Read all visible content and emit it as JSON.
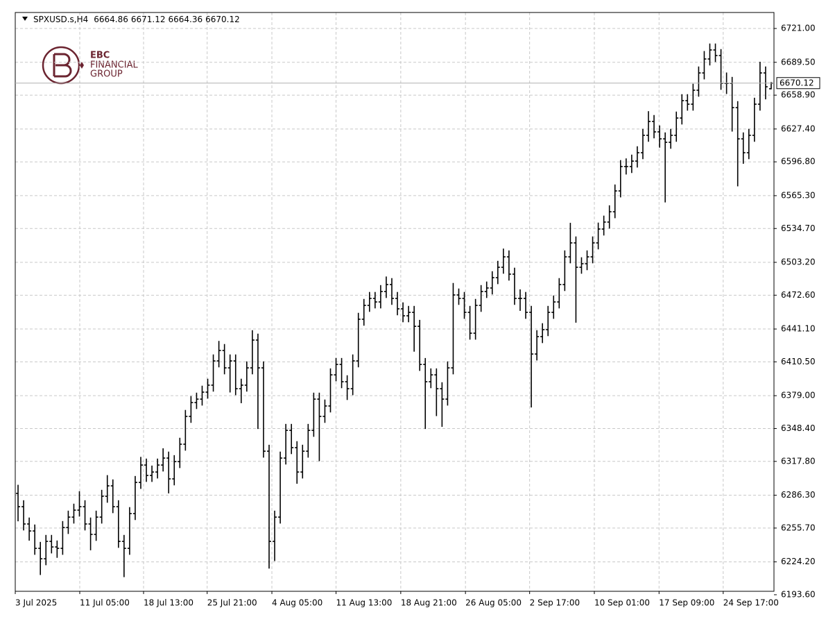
{
  "chart_data": {
    "type": "ohlc",
    "title": "SPXUSD.s,H4",
    "color": "#000000",
    "grid": true,
    "xlim": [
      0,
      136
    ],
    "ylim": [
      6196.8,
      6735.9
    ],
    "yticks": [
      {
        "value": 6721.0,
        "label": "6721.00"
      },
      {
        "value": 6689.5,
        "label": "6689.50"
      },
      {
        "value": 6658.9,
        "label": "6658.90"
      },
      {
        "value": 6627.4,
        "label": "6627.40"
      },
      {
        "value": 6596.8,
        "label": "6596.80"
      },
      {
        "value": 6565.3,
        "label": "6565.30"
      },
      {
        "value": 6534.7,
        "label": "6534.70"
      },
      {
        "value": 6503.2,
        "label": "6503.20"
      },
      {
        "value": 6472.6,
        "label": "6472.60"
      },
      {
        "value": 6441.1,
        "label": "6441.10"
      },
      {
        "value": 6410.5,
        "label": "6410.50"
      },
      {
        "value": 6379.0,
        "label": "6379.00"
      },
      {
        "value": 6348.4,
        "label": "6348.40"
      },
      {
        "value": 6317.8,
        "label": "6317.80"
      },
      {
        "value": 6286.3,
        "label": "6286.30"
      },
      {
        "value": 6255.7,
        "label": "6255.70"
      },
      {
        "value": 6224.2,
        "label": "6224.20"
      },
      {
        "value": 6193.6,
        "label": "6193.60"
      }
    ],
    "xticks": [
      {
        "value": 0,
        "label": "3 Jul 2025"
      },
      {
        "value": 11.56,
        "label": "11 Jul 05:00"
      },
      {
        "value": 23.0,
        "label": "18 Jul 13:00"
      },
      {
        "value": 34.4,
        "label": "25 Jul 21:00"
      },
      {
        "value": 46.0,
        "label": "4 Aug 05:00"
      },
      {
        "value": 57.5,
        "label": "11 Aug 13:00"
      },
      {
        "value": 69.1,
        "label": "18 Aug 21:00"
      },
      {
        "value": 80.7,
        "label": "26 Aug 05:00"
      },
      {
        "value": 92.2,
        "label": "2 Sep 17:00"
      },
      {
        "value": 103.8,
        "label": "10 Sep 01:00"
      },
      {
        "value": 115.4,
        "label": "17 Sep 09:00"
      },
      {
        "value": 126.9,
        "label": "24 Sep 17:00"
      }
    ],
    "series": {
      "open": [
        6288.0,
        6275.6,
        6259.5,
        6253.0,
        6236.8,
        6227.1,
        6243.3,
        6238.1,
        6236.8,
        6256.2,
        6265.9,
        6272.4,
        6275.6,
        6259.5,
        6249.8,
        6265.9,
        6285.3,
        6295.0,
        6275.6,
        6243.3,
        6236.8,
        6269.2,
        6298.2,
        6314.4,
        6304.7,
        6307.9,
        6314.4,
        6320.9,
        6301.5,
        6317.6,
        6333.8,
        6359.7,
        6372.6,
        6375.8,
        6382.3,
        6388.8,
        6411.4,
        6421.1,
        6404.9,
        6411.4,
        6385.5,
        6388.8,
        6404.9,
        6430.8,
        6404.9,
        6327.3,
        6243.3,
        6265.9,
        6320.9,
        6346.7,
        6330.6,
        6307.9,
        6327.3,
        6346.7,
        6375.8,
        6359.7,
        6369.4,
        6398.4,
        6408.1,
        6392.0,
        6385.5,
        6411.4,
        6450.2,
        6463.1,
        6469.6,
        6466.3,
        6476.0,
        6482.5,
        6469.6,
        6459.9,
        6453.4,
        6456.6,
        6443.6,
        6408.1,
        6392.0,
        6398.4,
        6385.5,
        6375.8,
        6404.9,
        6472.8,
        6469.6,
        6456.6,
        6437.2,
        6463.1,
        6476.0,
        6479.3,
        6488.9,
        6498.6,
        6508.3,
        6492.2,
        6469.6,
        6469.6,
        6456.6,
        6417.8,
        6434.0,
        6440.5,
        6456.6,
        6466.3,
        6482.5,
        6508.3,
        6521.3,
        6498.6,
        6501.9,
        6508.3,
        6521.3,
        6534.2,
        6540.7,
        6550.3,
        6569.7,
        6592.4,
        6592.4,
        6597.5,
        6605.3,
        6621.5,
        6634.4,
        6624.7,
        6618.2,
        6615.0,
        6621.5,
        6637.6,
        6653.8,
        6650.5,
        6663.5,
        6679.6,
        6692.6,
        6701.0,
        6695.8,
        6669.9,
        6669.9,
        6647.3,
        6618.2,
        6605.3,
        6621.5,
        6650.5,
        6679.6,
        6664.86
      ],
      "high": [
        6296.0,
        6281.6,
        6265.5,
        6259.0,
        6242.8,
        6249.3,
        6249.3,
        6244.1,
        6262.2,
        6271.9,
        6278.4,
        6290.0,
        6281.6,
        6265.5,
        6271.9,
        6291.3,
        6305.0,
        6301.0,
        6281.6,
        6249.3,
        6275.2,
        6304.2,
        6322.0,
        6320.4,
        6313.9,
        6320.4,
        6330.0,
        6326.9,
        6323.6,
        6339.8,
        6365.7,
        6378.6,
        6381.8,
        6388.3,
        6394.8,
        6417.4,
        6430.0,
        6427.1,
        6417.4,
        6417.4,
        6394.8,
        6410.9,
        6440.0,
        6436.8,
        6410.9,
        6333.3,
        6271.9,
        6326.9,
        6352.7,
        6352.7,
        6336.6,
        6333.3,
        6352.7,
        6381.8,
        6381.8,
        6375.4,
        6404.4,
        6414.1,
        6414.1,
        6398.0,
        6417.4,
        6456.2,
        6469.1,
        6475.6,
        6475.6,
        6482.0,
        6490.0,
        6488.5,
        6475.6,
        6465.9,
        6462.6,
        6462.6,
        6449.6,
        6414.1,
        6404.4,
        6404.4,
        6391.5,
        6410.9,
        6484.0,
        6478.8,
        6475.6,
        6462.6,
        6469.1,
        6482.0,
        6485.3,
        6494.9,
        6504.6,
        6516.0,
        6514.3,
        6498.2,
        6478.0,
        6475.6,
        6462.6,
        6440.0,
        6446.5,
        6462.6,
        6472.3,
        6488.5,
        6514.3,
        6540.0,
        6527.3,
        6507.9,
        6514.3,
        6527.3,
        6540.2,
        6546.7,
        6556.3,
        6575.7,
        6598.4,
        6600.0,
        6603.5,
        6611.3,
        6627.5,
        6644.0,
        6640.4,
        6630.7,
        6624.2,
        6627.5,
        6643.6,
        6659.8,
        6659.8,
        6669.5,
        6685.6,
        6700.0,
        6707.0,
        6707.0,
        6701.8,
        6680.0,
        6675.9,
        6653.3,
        6624.2,
        6627.5,
        6656.5,
        6690.0,
        6685.6,
        6671.12
      ],
      "low": [
        6262.0,
        6253.5,
        6244.0,
        6230.8,
        6212.0,
        6221.1,
        6232.1,
        6228.0,
        6230.8,
        6250.2,
        6259.9,
        6266.4,
        6253.5,
        6235.0,
        6243.8,
        6259.9,
        6279.3,
        6269.6,
        6237.3,
        6210.0,
        6230.8,
        6263.2,
        6292.2,
        6298.7,
        6298.7,
        6301.9,
        6308.4,
        6288.0,
        6295.5,
        6311.6,
        6327.8,
        6353.7,
        6366.6,
        6369.8,
        6376.3,
        6382.8,
        6405.4,
        6398.9,
        6382.0,
        6379.5,
        6372.0,
        6382.8,
        6398.9,
        6348.0,
        6321.3,
        6218.0,
        6225.0,
        6259.9,
        6314.9,
        6324.6,
        6297.0,
        6301.9,
        6321.3,
        6340.7,
        6318.0,
        6353.7,
        6363.4,
        6392.4,
        6386.0,
        6375.0,
        6379.5,
        6405.4,
        6444.2,
        6457.1,
        6460.3,
        6460.3,
        6470.0,
        6463.6,
        6453.9,
        6447.4,
        6447.4,
        6420.0,
        6402.1,
        6348.0,
        6386.0,
        6360.0,
        6350.0,
        6369.8,
        6398.9,
        6463.6,
        6450.6,
        6431.2,
        6431.2,
        6457.1,
        6470.0,
        6473.3,
        6482.9,
        6492.6,
        6486.2,
        6463.6,
        6458.0,
        6450.6,
        6368.0,
        6411.8,
        6428.0,
        6434.5,
        6450.6,
        6460.3,
        6476.5,
        6502.3,
        6447.0,
        6492.6,
        6495.9,
        6502.3,
        6515.3,
        6528.2,
        6534.7,
        6544.3,
        6563.7,
        6585.0,
        6586.4,
        6591.5,
        6599.3,
        6615.5,
        6618.7,
        6610.0,
        6559.0,
        6609.0,
        6615.5,
        6631.6,
        6644.5,
        6644.5,
        6657.5,
        6673.6,
        6686.6,
        6689.8,
        6663.9,
        6660.0,
        6625.0,
        6574.0,
        6595.0,
        6599.3,
        6615.5,
        6644.5,
        6655.0,
        6664.36
      ],
      "close": [
        6275.6,
        6259.5,
        6253.0,
        6236.8,
        6227.1,
        6243.3,
        6238.1,
        6236.8,
        6256.2,
        6265.9,
        6272.4,
        6275.6,
        6259.5,
        6249.8,
        6265.9,
        6285.3,
        6295.0,
        6275.6,
        6243.3,
        6236.8,
        6269.2,
        6298.2,
        6314.4,
        6304.7,
        6307.9,
        6314.4,
        6320.9,
        6301.5,
        6317.6,
        6333.8,
        6359.7,
        6372.6,
        6375.8,
        6382.3,
        6388.8,
        6411.4,
        6421.1,
        6404.9,
        6411.4,
        6385.5,
        6388.8,
        6404.9,
        6430.8,
        6404.9,
        6327.3,
        6243.3,
        6265.9,
        6320.9,
        6346.7,
        6330.6,
        6307.9,
        6327.3,
        6346.7,
        6375.8,
        6359.7,
        6369.4,
        6398.4,
        6408.1,
        6392.0,
        6385.5,
        6411.4,
        6450.2,
        6463.1,
        6469.6,
        6466.3,
        6476.0,
        6482.5,
        6469.6,
        6459.9,
        6453.4,
        6456.6,
        6443.6,
        6408.1,
        6392.0,
        6398.4,
        6385.5,
        6375.8,
        6404.9,
        6472.8,
        6469.6,
        6456.6,
        6437.2,
        6463.1,
        6476.0,
        6479.3,
        6488.9,
        6498.6,
        6508.3,
        6492.2,
        6469.6,
        6469.6,
        6456.6,
        6417.8,
        6434.0,
        6440.5,
        6456.6,
        6466.3,
        6482.5,
        6508.3,
        6521.3,
        6498.6,
        6501.9,
        6508.3,
        6521.3,
        6534.2,
        6540.7,
        6550.3,
        6569.7,
        6592.4,
        6592.4,
        6597.5,
        6605.3,
        6621.5,
        6634.4,
        6624.7,
        6618.2,
        6615.0,
        6621.5,
        6637.6,
        6653.8,
        6650.5,
        6663.5,
        6679.6,
        6692.6,
        6701.0,
        6695.8,
        6669.9,
        6669.9,
        6647.3,
        6618.2,
        6605.3,
        6621.5,
        6650.5,
        6679.6,
        6666.7,
        6670.12
      ]
    }
  },
  "logo": {
    "name": "EBC",
    "line2": "FINANCIAL",
    "line3": "GROUP"
  }
}
